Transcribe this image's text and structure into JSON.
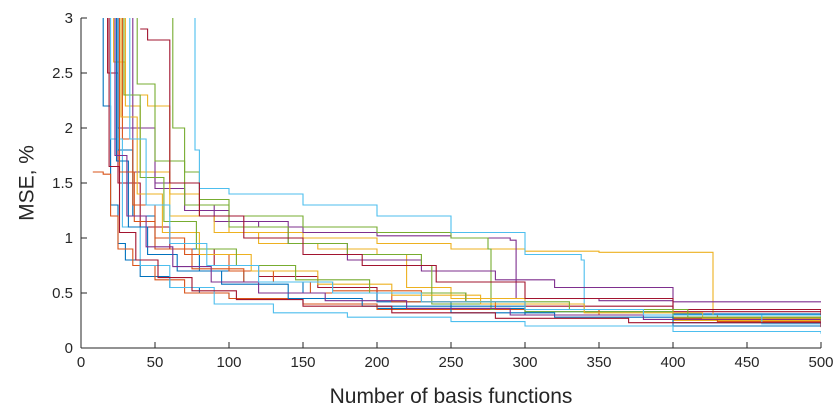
{
  "chart_data": {
    "type": "line",
    "title": "",
    "xlabel": "Number of basis functions",
    "ylabel": "MSE, %",
    "xlim": [
      0,
      500
    ],
    "ylim": [
      0,
      3
    ],
    "xticks": [
      0,
      50,
      100,
      150,
      200,
      250,
      300,
      350,
      400,
      450,
      500
    ],
    "yticks": [
      0,
      0.5,
      1,
      1.5,
      2,
      2.5,
      3
    ],
    "xtick_labels": [
      "0",
      "50",
      "100",
      "150",
      "200",
      "250",
      "300",
      "350",
      "400",
      "450",
      "500"
    ],
    "ytick_labels": [
      "0",
      "0.5",
      "1",
      "1.5",
      "2",
      "2.5",
      "3"
    ],
    "grid": false,
    "legend": "none",
    "series": [
      {
        "color": "#0072BD",
        "x": [
          10,
          15,
          20,
          25,
          30,
          40,
          60,
          80,
          100,
          150,
          200,
          300,
          400,
          500
        ],
        "y": [
          3.5,
          2.2,
          1.3,
          0.95,
          0.8,
          0.65,
          0.55,
          0.5,
          0.45,
          0.4,
          0.36,
          0.33,
          0.31,
          0.3
        ]
      },
      {
        "color": "#D95319",
        "x": [
          8,
          15,
          20,
          25,
          35,
          50,
          70,
          100,
          150,
          200,
          300,
          400,
          500
        ],
        "y": [
          1.6,
          1.58,
          1.2,
          0.9,
          0.75,
          0.62,
          0.5,
          0.45,
          0.4,
          0.35,
          0.3,
          0.27,
          0.25
        ]
      },
      {
        "color": "#EDB120",
        "x": [
          15,
          22,
          30,
          45,
          60,
          80,
          100,
          150,
          200,
          250,
          300,
          350,
          400,
          426,
          427,
          500
        ],
        "y": [
          3.5,
          2.6,
          2.3,
          2.2,
          1.4,
          1.2,
          1.05,
          1.0,
          0.95,
          0.9,
          0.88,
          0.87,
          0.87,
          0.87,
          0.3,
          0.28
        ]
      },
      {
        "color": "#7E2F8E",
        "x": [
          20,
          25,
          35,
          50,
          70,
          90,
          120,
          150,
          200,
          250,
          290,
          294,
          350,
          400,
          500
        ],
        "y": [
          3.5,
          2.0,
          1.6,
          1.45,
          1.3,
          1.15,
          1.1,
          1.05,
          1.02,
          1.0,
          0.98,
          0.45,
          0.43,
          0.42,
          0.42
        ]
      },
      {
        "color": "#77AC30",
        "x": [
          60,
          62,
          70,
          80,
          100,
          150,
          200,
          250,
          275,
          277,
          350,
          400,
          500
        ],
        "y": [
          3.5,
          2.0,
          1.6,
          1.35,
          1.2,
          1.1,
          1.05,
          1.0,
          0.9,
          0.35,
          0.3,
          0.28,
          0.27
        ]
      },
      {
        "color": "#4DBEEE",
        "x": [
          75,
          77,
          80,
          100,
          150,
          200,
          250,
          300,
          338,
          340,
          400,
          500
        ],
        "y": [
          3.5,
          1.8,
          1.45,
          1.4,
          1.3,
          1.2,
          1.05,
          0.85,
          0.8,
          0.35,
          0.3,
          0.28
        ]
      },
      {
        "color": "#A2142F",
        "x": [
          12,
          18,
          25,
          40,
          60,
          90,
          120,
          160,
          200,
          260,
          300,
          400,
          500
        ],
        "y": [
          3.5,
          2.5,
          1.5,
          1.1,
          0.9,
          0.75,
          0.65,
          0.55,
          0.5,
          0.42,
          0.38,
          0.33,
          0.3
        ]
      },
      {
        "color": "#0072BD",
        "x": [
          18,
          25,
          35,
          50,
          80,
          110,
          150,
          200,
          250,
          300,
          400,
          500
        ],
        "y": [
          3.5,
          1.8,
          1.2,
          0.9,
          0.7,
          0.6,
          0.5,
          0.42,
          0.38,
          0.3,
          0.2,
          0.2
        ]
      },
      {
        "color": "#D95319",
        "x": [
          22,
          28,
          35,
          50,
          70,
          100,
          130,
          170,
          230,
          300,
          400,
          500
        ],
        "y": [
          3.5,
          1.9,
          1.3,
          1.0,
          0.85,
          0.7,
          0.6,
          0.52,
          0.42,
          0.35,
          0.27,
          0.23
        ]
      },
      {
        "color": "#EDB120",
        "x": [
          25,
          30,
          40,
          60,
          90,
          120,
          160,
          200,
          220,
          250,
          300,
          400,
          500
        ],
        "y": [
          3.5,
          2.2,
          1.6,
          1.2,
          1.05,
          0.95,
          0.9,
          0.85,
          0.55,
          0.45,
          0.35,
          0.25,
          0.2
        ]
      },
      {
        "color": "#7E2F8E",
        "x": [
          28,
          35,
          50,
          70,
          100,
          140,
          180,
          230,
          280,
          320,
          400,
          500
        ],
        "y": [
          3.5,
          2.0,
          1.5,
          1.25,
          1.15,
          0.95,
          0.8,
          0.7,
          0.62,
          0.55,
          0.35,
          0.33
        ]
      },
      {
        "color": "#77AC30",
        "x": [
          30,
          38,
          50,
          70,
          100,
          140,
          180,
          230,
          237,
          300,
          400,
          500
        ],
        "y": [
          3.5,
          2.4,
          1.7,
          1.3,
          1.1,
          0.95,
          0.85,
          0.75,
          0.4,
          0.33,
          0.26,
          0.22
        ]
      },
      {
        "color": "#4DBEEE",
        "x": [
          14,
          20,
          28,
          40,
          60,
          90,
          130,
          180,
          250,
          300,
          400,
          500
        ],
        "y": [
          3.5,
          1.9,
          1.1,
          0.75,
          0.55,
          0.4,
          0.32,
          0.28,
          0.24,
          0.2,
          0.15,
          0.13
        ]
      },
      {
        "color": "#A2142F",
        "x": [
          40,
          45,
          60,
          80,
          110,
          150,
          190,
          240,
          300,
          400,
          500
        ],
        "y": [
          2.9,
          2.8,
          1.5,
          1.2,
          1.0,
          0.85,
          0.75,
          0.6,
          0.45,
          0.35,
          0.32
        ]
      },
      {
        "color": "#0072BD",
        "x": [
          17,
          24,
          32,
          45,
          65,
          95,
          140,
          190,
          250,
          320,
          400,
          500
        ],
        "y": [
          3.5,
          1.7,
          1.1,
          0.85,
          0.7,
          0.58,
          0.45,
          0.38,
          0.32,
          0.28,
          0.23,
          0.2
        ]
      },
      {
        "color": "#D95319",
        "x": [
          19,
          26,
          36,
          50,
          75,
          110,
          155,
          210,
          280,
          350,
          430,
          500
        ],
        "y": [
          3.5,
          1.6,
          1.15,
          0.9,
          0.72,
          0.6,
          0.5,
          0.42,
          0.35,
          0.3,
          0.24,
          0.21
        ]
      },
      {
        "color": "#EDB120",
        "x": [
          21,
          27,
          38,
          55,
          80,
          115,
          160,
          210,
          270,
          340,
          420,
          500
        ],
        "y": [
          3.5,
          2.1,
          1.4,
          1.05,
          0.85,
          0.7,
          0.58,
          0.48,
          0.4,
          0.32,
          0.27,
          0.24
        ]
      },
      {
        "color": "#7E2F8E",
        "x": [
          16,
          23,
          31,
          44,
          62,
          88,
          120,
          165,
          220,
          290,
          380,
          500
        ],
        "y": [
          3.5,
          1.75,
          1.2,
          0.92,
          0.74,
          0.6,
          0.5,
          0.43,
          0.36,
          0.3,
          0.26,
          0.22
        ]
      },
      {
        "color": "#77AC30",
        "x": [
          23,
          29,
          40,
          56,
          78,
          105,
          145,
          195,
          260,
          330,
          410,
          500
        ],
        "y": [
          3.5,
          2.3,
          1.55,
          1.15,
          0.9,
          0.75,
          0.62,
          0.5,
          0.42,
          0.35,
          0.28,
          0.25
        ]
      },
      {
        "color": "#4DBEEE",
        "x": [
          26,
          33,
          44,
          60,
          85,
          120,
          170,
          230,
          300,
          380,
          460,
          500
        ],
        "y": [
          3.5,
          1.9,
          1.3,
          0.95,
          0.75,
          0.6,
          0.5,
          0.42,
          0.35,
          0.3,
          0.22,
          0.2
        ]
      },
      {
        "color": "#A2142F",
        "x": [
          13,
          19,
          26,
          37,
          52,
          75,
          105,
          150,
          210,
          280,
          370,
          500
        ],
        "y": [
          3.5,
          1.65,
          1.05,
          0.8,
          0.64,
          0.52,
          0.44,
          0.38,
          0.32,
          0.27,
          0.23,
          0.19
        ]
      }
    ]
  }
}
